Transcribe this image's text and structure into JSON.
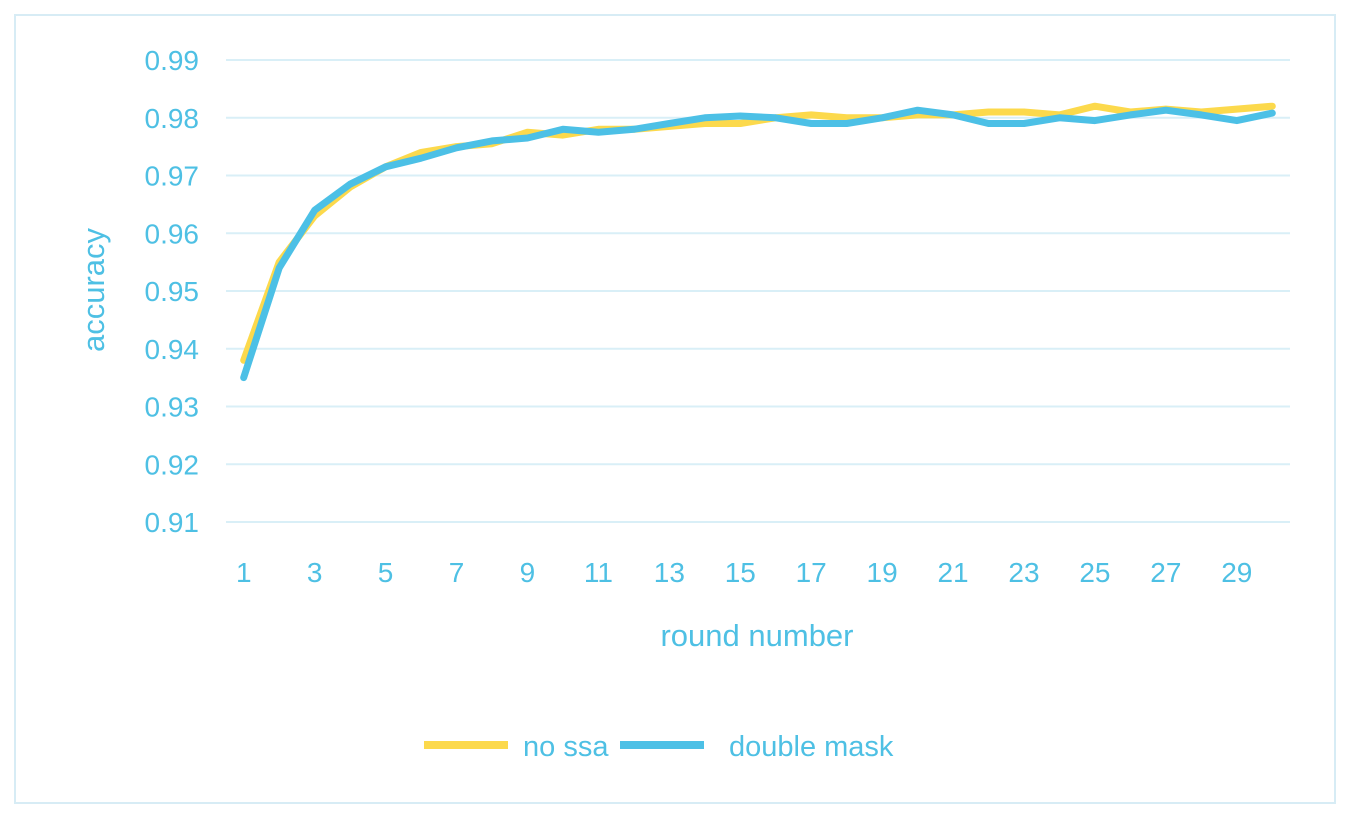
{
  "chart_data": {
    "type": "line",
    "xlabel": "round number",
    "ylabel": "accuracy",
    "ylim": [
      0.91,
      0.99
    ],
    "yticks": [
      "0.91",
      "0.92",
      "0.93",
      "0.94",
      "0.95",
      "0.96",
      "0.97",
      "0.98",
      "0.99"
    ],
    "xticks": [
      "1",
      "3",
      "5",
      "7",
      "9",
      "11",
      "13",
      "15",
      "17",
      "19",
      "21",
      "23",
      "25",
      "27",
      "29"
    ],
    "x": [
      1,
      2,
      3,
      4,
      5,
      6,
      7,
      8,
      9,
      10,
      11,
      12,
      13,
      14,
      15,
      16,
      17,
      18,
      19,
      20,
      21,
      22,
      23,
      24,
      25,
      26,
      27,
      28,
      29,
      30
    ],
    "grid": "horizontal",
    "legend_position": "bottom",
    "series": [
      {
        "name": "no ssa",
        "color": "#fcd94c",
        "values": [
          0.938,
          0.955,
          0.963,
          0.968,
          0.9715,
          0.974,
          0.975,
          0.9755,
          0.9775,
          0.977,
          0.978,
          0.978,
          0.9785,
          0.979,
          0.979,
          0.98,
          0.9805,
          0.98,
          0.98,
          0.9805,
          0.9805,
          0.981,
          0.981,
          0.9805,
          0.982,
          0.981,
          0.9815,
          0.981,
          0.9815,
          0.982
        ]
      },
      {
        "name": "double mask",
        "color": "#4cc0e6",
        "values": [
          0.935,
          0.954,
          0.964,
          0.9685,
          0.9715,
          0.973,
          0.9748,
          0.976,
          0.9765,
          0.978,
          0.9775,
          0.978,
          0.979,
          0.98,
          0.9803,
          0.98,
          0.979,
          0.979,
          0.98,
          0.9813,
          0.9805,
          0.979,
          0.979,
          0.98,
          0.9795,
          0.9805,
          0.9813,
          0.9805,
          0.9795,
          0.9808
        ]
      }
    ]
  }
}
